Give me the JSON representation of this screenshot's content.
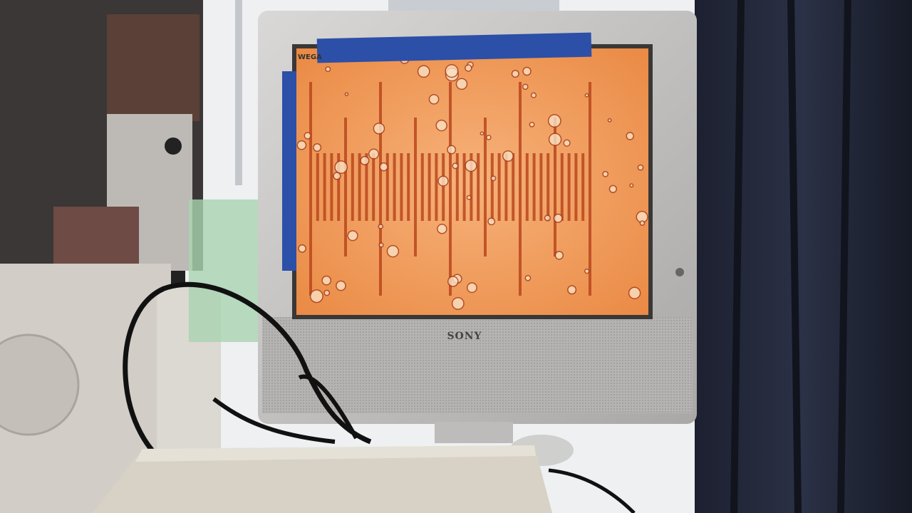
{
  "monitor": {
    "model": "WEGA",
    "brand": "SONY"
  }
}
